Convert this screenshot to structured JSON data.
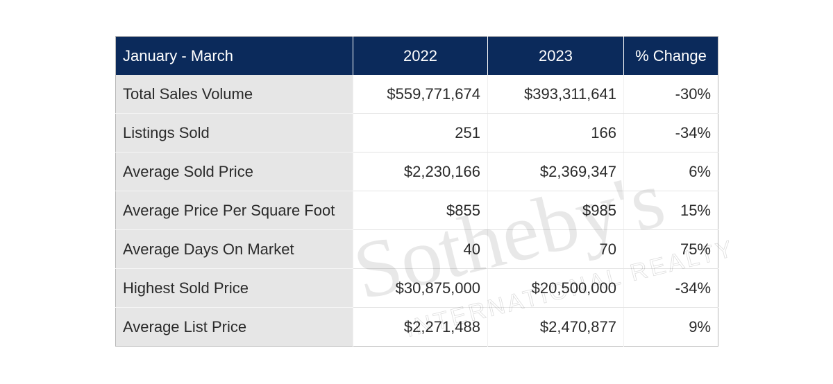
{
  "chart_data": {
    "type": "table",
    "header": [
      "January - March",
      "2022",
      "2023",
      "% Change"
    ],
    "rows": [
      [
        "Total Sales Volume",
        "$559,771,674",
        "$393,311,641",
        "-30%"
      ],
      [
        "Listings Sold",
        "251",
        "166",
        "-34%"
      ],
      [
        "Average Sold Price",
        "$2,230,166",
        "$2,369,347",
        "6%"
      ],
      [
        "Average Price Per Square Foot",
        "$855",
        "$985",
        "15%"
      ],
      [
        "Average Days On Market",
        "40",
        "70",
        "75%"
      ],
      [
        "Highest Sold Price",
        "$30,875,000",
        "$20,500,000",
        "-34%"
      ],
      [
        "Average List Price",
        "$2,271,488",
        "$2,470,877",
        "9%"
      ]
    ]
  },
  "watermark": {
    "brand": "Sotheby's",
    "sub": "INTERNATIONAL REALTY"
  },
  "colors": {
    "header_bg": "#0b2a5b",
    "label_bg": "#e6e6e6",
    "text": "#2a2a2a"
  }
}
